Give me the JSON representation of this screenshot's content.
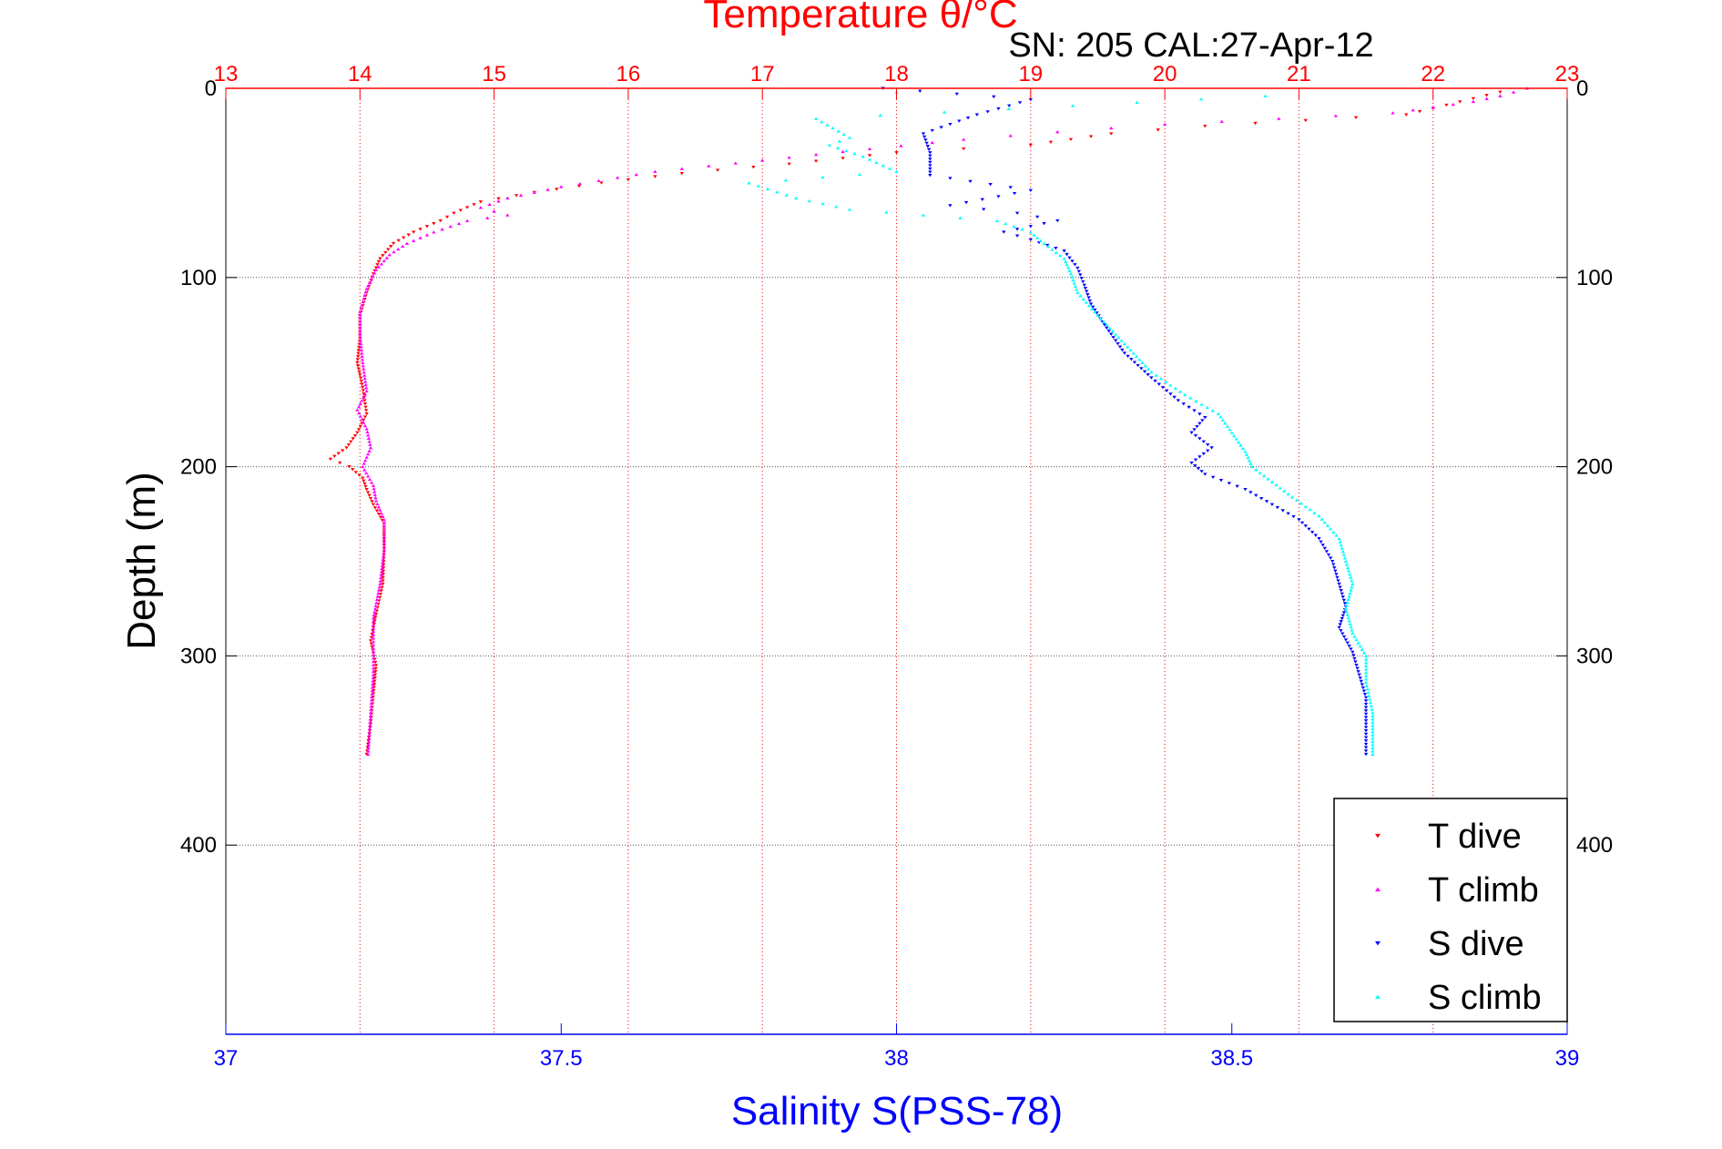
{
  "chart_data": {
    "type": "scatter",
    "title": "Temperature θ/°C",
    "subtitle": "SN: 205  CAL:27-Apr-12",
    "ylabel": "Depth (m)",
    "xlabel_bottom": "Salinity S(PSS-78)",
    "y_reversed": true,
    "ylim": [
      0,
      500
    ],
    "yticks": [
      0,
      100,
      200,
      300,
      400
    ],
    "x_top": {
      "label": "Temperature θ/°C",
      "lim": [
        13,
        23
      ],
      "ticks": [
        13,
        14,
        15,
        16,
        17,
        18,
        19,
        20,
        21,
        22,
        23
      ],
      "color": "#ff0000"
    },
    "x_bottom": {
      "label": "Salinity S(PSS-78)",
      "lim": [
        37,
        39
      ],
      "ticks": [
        "37",
        "37.5",
        "38",
        "38.5",
        "39"
      ],
      "tickvals": [
        37,
        37.5,
        38,
        38.5,
        39
      ],
      "color": "#0000ff"
    },
    "grid": true,
    "legend_position": "bottom-right",
    "series": [
      {
        "name": "T dive",
        "axis": "top",
        "color": "#ff0000",
        "marker": "triangle-down",
        "points": [
          [
            22.5,
            2
          ],
          [
            21.8,
            14
          ],
          [
            20.3,
            20
          ],
          [
            19.6,
            24
          ],
          [
            19.0,
            30
          ],
          [
            18.0,
            34
          ],
          [
            17.2,
            40
          ],
          [
            16.4,
            45
          ],
          [
            15.8,
            50
          ],
          [
            15.3,
            55
          ],
          [
            14.9,
            60
          ],
          [
            14.7,
            66
          ],
          [
            14.6,
            70
          ],
          [
            14.4,
            76
          ],
          [
            14.25,
            82
          ],
          [
            14.15,
            90
          ],
          [
            14.1,
            98
          ],
          [
            14.05,
            108
          ],
          [
            14.0,
            120
          ],
          [
            14.0,
            132
          ],
          [
            13.98,
            145
          ],
          [
            14.02,
            158
          ],
          [
            14.05,
            172
          ],
          [
            13.98,
            182
          ],
          [
            13.9,
            190
          ],
          [
            13.78,
            196
          ],
          [
            13.92,
            200
          ],
          [
            14.02,
            206
          ],
          [
            14.05,
            212
          ],
          [
            14.1,
            220
          ],
          [
            14.18,
            230
          ],
          [
            14.18,
            245
          ],
          [
            14.17,
            262
          ],
          [
            14.12,
            278
          ],
          [
            14.08,
            292
          ],
          [
            14.12,
            305
          ],
          [
            14.1,
            320
          ],
          [
            14.08,
            336
          ],
          [
            14.05,
            352
          ]
        ]
      },
      {
        "name": "T climb",
        "axis": "top",
        "color": "#ff00ff",
        "marker": "triangle-up",
        "points": [
          [
            22.7,
            0
          ],
          [
            22.5,
            4
          ],
          [
            22.3,
            7
          ],
          [
            22.0,
            10
          ],
          [
            21.7,
            13
          ],
          [
            20.0,
            19
          ],
          [
            19.2,
            23
          ],
          [
            18.5,
            27
          ],
          [
            17.8,
            32
          ],
          [
            17.0,
            38
          ],
          [
            16.2,
            44
          ],
          [
            15.5,
            52
          ],
          [
            15.1,
            58
          ],
          [
            14.9,
            63
          ],
          [
            15.1,
            67
          ],
          [
            14.8,
            70
          ],
          [
            14.55,
            76
          ],
          [
            14.35,
            82
          ],
          [
            14.22,
            88
          ],
          [
            14.12,
            96
          ],
          [
            14.05,
            106
          ],
          [
            14.0,
            118
          ],
          [
            14.0,
            130
          ],
          [
            14.02,
            145
          ],
          [
            14.05,
            160
          ],
          [
            13.98,
            170
          ],
          [
            14.05,
            180
          ],
          [
            14.08,
            190
          ],
          [
            14.02,
            200
          ],
          [
            14.1,
            210
          ],
          [
            14.12,
            218
          ],
          [
            14.18,
            228
          ],
          [
            14.18,
            244
          ],
          [
            14.15,
            262
          ],
          [
            14.1,
            280
          ],
          [
            14.1,
            296
          ],
          [
            14.1,
            310
          ],
          [
            14.08,
            330
          ],
          [
            14.06,
            352
          ]
        ]
      },
      {
        "name": "S dive",
        "axis": "bottom",
        "color": "#0000ff",
        "marker": "triangle-down",
        "points": [
          [
            37.98,
            0
          ],
          [
            38.2,
            6
          ],
          [
            38.12,
            14
          ],
          [
            38.04,
            24
          ],
          [
            38.05,
            34
          ],
          [
            38.05,
            46
          ],
          [
            38.2,
            54
          ],
          [
            38.08,
            62
          ],
          [
            38.18,
            66
          ],
          [
            38.24,
            70
          ],
          [
            38.16,
            76
          ],
          [
            38.2,
            80
          ],
          [
            38.25,
            86
          ],
          [
            38.27,
            95
          ],
          [
            38.28,
            104
          ],
          [
            38.29,
            114
          ],
          [
            38.31,
            125
          ],
          [
            38.34,
            140
          ],
          [
            38.38,
            153
          ],
          [
            38.42,
            165
          ],
          [
            38.46,
            174
          ],
          [
            38.44,
            182
          ],
          [
            38.47,
            190
          ],
          [
            38.44,
            198
          ],
          [
            38.46,
            204
          ],
          [
            38.52,
            212
          ],
          [
            38.56,
            220
          ],
          [
            38.6,
            228
          ],
          [
            38.63,
            238
          ],
          [
            38.65,
            250
          ],
          [
            38.66,
            262
          ],
          [
            38.67,
            274
          ],
          [
            38.66,
            285
          ],
          [
            38.68,
            298
          ],
          [
            38.69,
            310
          ],
          [
            38.7,
            322
          ],
          [
            38.7,
            336
          ],
          [
            38.7,
            352
          ]
        ]
      },
      {
        "name": "S climb",
        "axis": "bottom",
        "color": "#00ffff",
        "marker": "triangle-up",
        "points": [
          [
            38.0,
            2
          ],
          [
            38.55,
            4
          ],
          [
            37.88,
            16
          ],
          [
            37.93,
            26
          ],
          [
            37.9,
            30
          ],
          [
            37.95,
            36
          ],
          [
            38.0,
            44
          ],
          [
            37.78,
            50
          ],
          [
            37.85,
            58
          ],
          [
            37.93,
            64
          ],
          [
            38.15,
            70
          ],
          [
            38.2,
            76
          ],
          [
            38.22,
            82
          ],
          [
            38.25,
            90
          ],
          [
            38.26,
            98
          ],
          [
            38.27,
            108
          ],
          [
            38.3,
            120
          ],
          [
            38.34,
            135
          ],
          [
            38.38,
            150
          ],
          [
            38.43,
            162
          ],
          [
            38.48,
            172
          ],
          [
            38.5,
            182
          ],
          [
            38.52,
            192
          ],
          [
            38.53,
            200
          ],
          [
            38.56,
            208
          ],
          [
            38.59,
            216
          ],
          [
            38.63,
            226
          ],
          [
            38.66,
            238
          ],
          [
            38.67,
            250
          ],
          [
            38.68,
            262
          ],
          [
            38.67,
            275
          ],
          [
            38.68,
            288
          ],
          [
            38.7,
            300
          ],
          [
            38.7,
            314
          ],
          [
            38.71,
            330
          ],
          [
            38.71,
            352
          ]
        ]
      }
    ]
  }
}
